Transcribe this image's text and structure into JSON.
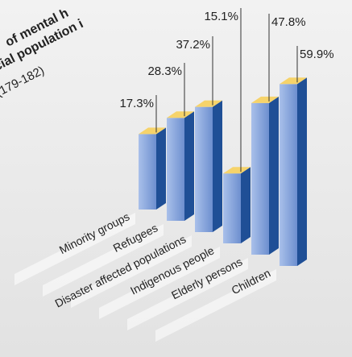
{
  "chart_data": {
    "type": "bar3d",
    "title_lines": [
      "of mental h",
      "cial population i",
      "(179-182)"
    ],
    "categories": [
      "Minority groups",
      "Refugees",
      "Disaster affected populations",
      "Indigenous people",
      "Elderly persons",
      "Children"
    ],
    "values": [
      17.3,
      28.3,
      37.2,
      15.1,
      47.8,
      59.9
    ],
    "value_labels": [
      "17.3%",
      "28.3%",
      "37.2%",
      "15.1%",
      "47.8%",
      "59.9%"
    ],
    "colors": {
      "front": "#7f9fd8",
      "side": "#1f4f96",
      "top": "#f6d36a"
    }
  }
}
